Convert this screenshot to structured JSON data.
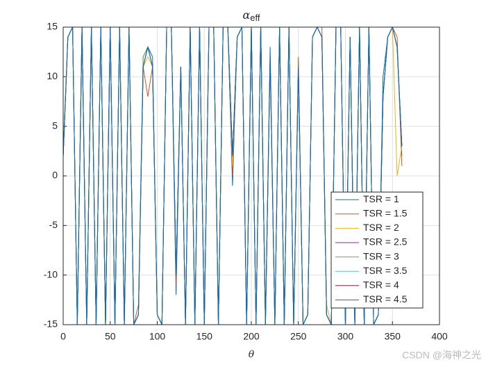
{
  "chart_data": {
    "type": "line",
    "title": "α",
    "title_subscript": "eff",
    "x_label": "θ",
    "x": [
      0,
      5,
      10,
      15,
      20,
      25,
      30,
      35,
      40,
      45,
      50,
      55,
      60,
      65,
      70,
      75,
      80,
      85,
      90,
      95,
      100,
      105,
      110,
      115,
      120,
      125,
      130,
      135,
      140,
      145,
      150,
      155,
      160,
      165,
      170,
      175,
      180,
      185,
      190,
      195,
      200,
      205,
      210,
      215,
      220,
      225,
      230,
      235,
      240,
      245,
      250,
      255,
      260,
      265,
      270,
      275,
      280,
      285,
      290,
      295,
      300,
      305,
      310,
      315,
      320,
      325,
      330,
      335,
      340,
      345,
      350,
      355,
      360
    ],
    "series": [
      {
        "name": "TSR = 1",
        "color": "#0072BD",
        "values": [
          2,
          14,
          15,
          -15,
          15,
          -15,
          15,
          -15,
          15,
          -15,
          15,
          -15,
          15,
          -15,
          15,
          -15,
          -14,
          12,
          13,
          12,
          -14,
          -15,
          15,
          15,
          -12,
          11,
          -15,
          15,
          -15,
          15,
          -15,
          15,
          15,
          -15,
          15,
          15,
          -1,
          14,
          15,
          -15,
          15,
          -15,
          15,
          -15,
          13,
          -15,
          15,
          -15,
          15,
          -15,
          11,
          -15,
          -14,
          14,
          15,
          14,
          -14,
          -15,
          15,
          15,
          -15,
          14,
          -15,
          15,
          -15,
          15,
          -15,
          -14,
          10,
          14,
          15,
          13,
          2
        ]
      },
      {
        "name": "TSR = 1.5",
        "color": "#D95319",
        "values": [
          2,
          14,
          15,
          -15,
          15,
          -15,
          15,
          -15,
          15,
          -15,
          15,
          -15,
          15,
          -15,
          15,
          -15,
          -13,
          11,
          8,
          11,
          -14,
          -15,
          15,
          15,
          -11,
          11,
          -15,
          15,
          -15,
          15,
          -15,
          15,
          15,
          -15,
          15,
          15,
          0,
          14,
          15,
          -15,
          15,
          -15,
          15,
          -15,
          12,
          -15,
          15,
          -15,
          15,
          -15,
          12,
          -15,
          -14,
          14,
          15,
          15,
          -14,
          -15,
          15,
          15,
          -15,
          14,
          -15,
          15,
          -15,
          15,
          -15,
          -14,
          8,
          14,
          15,
          14,
          1
        ]
      },
      {
        "name": "TSR = 2",
        "color": "#EDB120",
        "values": [
          3,
          14,
          15,
          -15,
          14,
          -15,
          15,
          -15,
          15,
          -15,
          15,
          -15,
          15,
          -15,
          15,
          -15,
          -14,
          11,
          12,
          11,
          -14,
          -15,
          15,
          15,
          -10,
          11,
          -15,
          15,
          -15,
          15,
          -15,
          15,
          15,
          -15,
          15,
          15,
          1,
          14,
          15,
          -15,
          15,
          -15,
          15,
          -15,
          12,
          -15,
          15,
          -15,
          15,
          -15,
          11,
          -15,
          -14,
          14,
          15,
          14,
          -13,
          -15,
          15,
          15,
          -15,
          14,
          -15,
          15,
          -15,
          15,
          -15,
          -14,
          8,
          14,
          15,
          0,
          3
        ]
      },
      {
        "name": "TSR = 2.5",
        "color": "#7E2F8E",
        "values": [
          2,
          14,
          15,
          -15,
          15,
          -15,
          15,
          -15,
          15,
          -15,
          15,
          -15,
          15,
          -15,
          15,
          -15,
          -14,
          11,
          13,
          11,
          -14,
          -15,
          15,
          15,
          -10,
          11,
          -15,
          15,
          -15,
          15,
          -15,
          15,
          15,
          -15,
          15,
          15,
          2,
          14,
          15,
          -15,
          15,
          -15,
          15,
          -15,
          12,
          -15,
          15,
          -15,
          15,
          -15,
          11,
          -15,
          -14,
          14,
          15,
          14,
          -14,
          -15,
          15,
          15,
          -15,
          14,
          -15,
          15,
          -15,
          15,
          -15,
          -14,
          8,
          14,
          15,
          13,
          3
        ]
      },
      {
        "name": "TSR = 3",
        "color": "#77AC30",
        "values": [
          2,
          14,
          15,
          -15,
          15,
          -15,
          15,
          -15,
          15,
          -15,
          15,
          -15,
          15,
          -15,
          15,
          -15,
          -14,
          12,
          13,
          11,
          -14,
          -15,
          15,
          15,
          -10,
          11,
          -15,
          15,
          -15,
          15,
          -15,
          15,
          15,
          -15,
          15,
          15,
          2,
          14,
          15,
          -15,
          15,
          -15,
          15,
          -15,
          12,
          -15,
          15,
          -15,
          15,
          -15,
          11,
          -15,
          -14,
          14,
          15,
          14,
          -14,
          -15,
          15,
          15,
          -15,
          14,
          -15,
          15,
          -15,
          15,
          -15,
          -14,
          8,
          14,
          15,
          13,
          3
        ]
      },
      {
        "name": "TSR = 3.5",
        "color": "#4DBEEE",
        "values": [
          2,
          14,
          15,
          -15,
          15,
          -15,
          15,
          -15,
          15,
          -15,
          15,
          -15,
          15,
          -15,
          15,
          -15,
          -14,
          11,
          13,
          11,
          -14,
          -15,
          15,
          15,
          -10,
          11,
          -15,
          15,
          -15,
          15,
          -15,
          15,
          15,
          -15,
          15,
          15,
          2,
          14,
          15,
          -15,
          15,
          -15,
          15,
          -15,
          12,
          -15,
          15,
          -15,
          15,
          -15,
          11,
          -15,
          -14,
          14,
          15,
          14,
          -14,
          -15,
          15,
          15,
          -15,
          14,
          -15,
          15,
          -15,
          15,
          -15,
          -14,
          8,
          14,
          15,
          13,
          3
        ]
      },
      {
        "name": "TSR = 4",
        "color": "#A2142F",
        "values": [
          2,
          14,
          15,
          -15,
          15,
          -15,
          15,
          -15,
          15,
          -15,
          15,
          -15,
          15,
          -15,
          15,
          -15,
          -14,
          11,
          13,
          11,
          -14,
          -15,
          15,
          15,
          -10,
          11,
          -15,
          15,
          -15,
          15,
          -15,
          15,
          15,
          -15,
          15,
          15,
          2,
          14,
          15,
          -15,
          15,
          -15,
          15,
          -15,
          12,
          -15,
          15,
          -15,
          15,
          -15,
          11,
          -15,
          -14,
          14,
          15,
          14,
          -14,
          -15,
          15,
          15,
          -15,
          14,
          -15,
          15,
          -15,
          15,
          -15,
          -14,
          8,
          14,
          15,
          13,
          3
        ]
      },
      {
        "name": "TSR = 4.5",
        "color": "#0072BD",
        "values": [
          2,
          14,
          15,
          -15,
          15,
          -15,
          15,
          -15,
          15,
          -15,
          15,
          -15,
          15,
          -15,
          15,
          -15,
          -14,
          11,
          13,
          11,
          -14,
          -15,
          15,
          15,
          -10,
          11,
          -15,
          15,
          -15,
          15,
          -15,
          15,
          15,
          -15,
          15,
          15,
          2,
          14,
          15,
          -15,
          15,
          -15,
          15,
          -15,
          12,
          -15,
          15,
          -15,
          15,
          -15,
          11,
          -15,
          -14,
          14,
          15,
          14,
          -14,
          -15,
          15,
          15,
          -15,
          14,
          -15,
          15,
          -15,
          15,
          -15,
          -14,
          8,
          14,
          15,
          13,
          3
        ]
      }
    ],
    "xlim": [
      0,
      400
    ],
    "xticks": [
      0,
      50,
      100,
      150,
      200,
      250,
      300,
      350,
      400
    ],
    "ylim": [
      -15,
      15
    ],
    "yticks": [
      -15,
      -10,
      -5,
      0,
      5,
      10,
      15
    ],
    "grid": true,
    "legend": "lower right",
    "watermark": "CSDN @海神之光"
  }
}
